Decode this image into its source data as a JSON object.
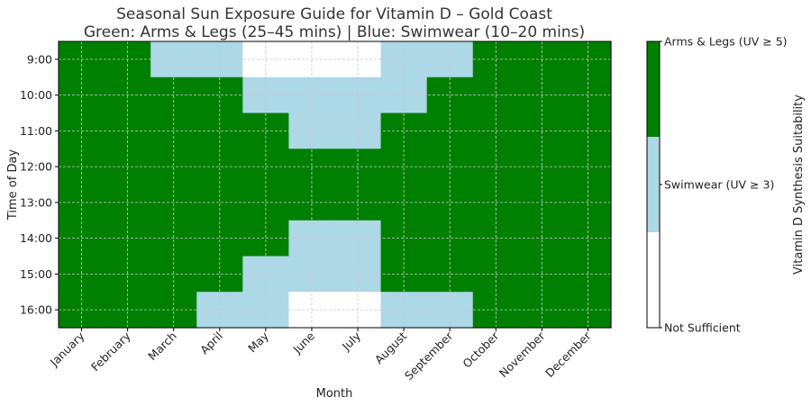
{
  "chart_data": {
    "type": "heatmap",
    "title_lines": [
      "Seasonal Sun Exposure Guide for Vitamin D – Gold Coast",
      "Green: Arms & Legs (25–45 mins) | Blue: Swimwear (10–20 mins)"
    ],
    "xlabel": "Month",
    "ylabel": "Time of Day",
    "x_categories": [
      "January",
      "February",
      "March",
      "April",
      "May",
      "June",
      "July",
      "August",
      "September",
      "October",
      "November",
      "December"
    ],
    "y_categories": [
      "9:00",
      "10:00",
      "11:00",
      "12:00",
      "13:00",
      "14:00",
      "15:00",
      "16:00"
    ],
    "half_hour_rows": [
      "9:00",
      "9:30",
      "10:00",
      "10:30",
      "11:00",
      "11:30",
      "12:00",
      "12:30",
      "13:00",
      "13:30",
      "14:00",
      "14:30",
      "15:00",
      "15:30",
      "16:00",
      "16:30"
    ],
    "values": [
      [
        2,
        2,
        1,
        1,
        0,
        0,
        0,
        1,
        1,
        2,
        2,
        2
      ],
      [
        2,
        2,
        1,
        1,
        0,
        0,
        0,
        1,
        1,
        2,
        2,
        2
      ],
      [
        2,
        2,
        2,
        2,
        1,
        1,
        1,
        1,
        2,
        2,
        2,
        2
      ],
      [
        2,
        2,
        2,
        2,
        1,
        1,
        1,
        1,
        2,
        2,
        2,
        2
      ],
      [
        2,
        2,
        2,
        2,
        2,
        1,
        1,
        2,
        2,
        2,
        2,
        2
      ],
      [
        2,
        2,
        2,
        2,
        2,
        1,
        1,
        2,
        2,
        2,
        2,
        2
      ],
      [
        2,
        2,
        2,
        2,
        2,
        2,
        2,
        2,
        2,
        2,
        2,
        2
      ],
      [
        2,
        2,
        2,
        2,
        2,
        2,
        2,
        2,
        2,
        2,
        2,
        2
      ],
      [
        2,
        2,
        2,
        2,
        2,
        2,
        2,
        2,
        2,
        2,
        2,
        2
      ],
      [
        2,
        2,
        2,
        2,
        2,
        2,
        2,
        2,
        2,
        2,
        2,
        2
      ],
      [
        2,
        2,
        2,
        2,
        2,
        1,
        1,
        2,
        2,
        2,
        2,
        2
      ],
      [
        2,
        2,
        2,
        2,
        2,
        1,
        1,
        2,
        2,
        2,
        2,
        2
      ],
      [
        2,
        2,
        2,
        2,
        1,
        1,
        1,
        2,
        2,
        2,
        2,
        2
      ],
      [
        2,
        2,
        2,
        2,
        1,
        1,
        1,
        2,
        2,
        2,
        2,
        2
      ],
      [
        2,
        2,
        2,
        1,
        1,
        0,
        0,
        1,
        1,
        2,
        2,
        2
      ],
      [
        2,
        2,
        2,
        1,
        1,
        0,
        0,
        1,
        1,
        2,
        2,
        2
      ]
    ],
    "levels": [
      {
        "value": 0,
        "label": "Not Sufficient",
        "color": "#ffffff"
      },
      {
        "value": 1,
        "label": "Swimwear (UV ≥ 3)",
        "color": "#add8e6"
      },
      {
        "value": 2,
        "label": "Arms & Legs (UV ≥ 5)",
        "color": "#008000"
      }
    ],
    "colorbar_label": "Vitamin D Synthesis Suitability",
    "grid": true,
    "grid_color": "#c8c8c8",
    "legend_placement": "right"
  }
}
